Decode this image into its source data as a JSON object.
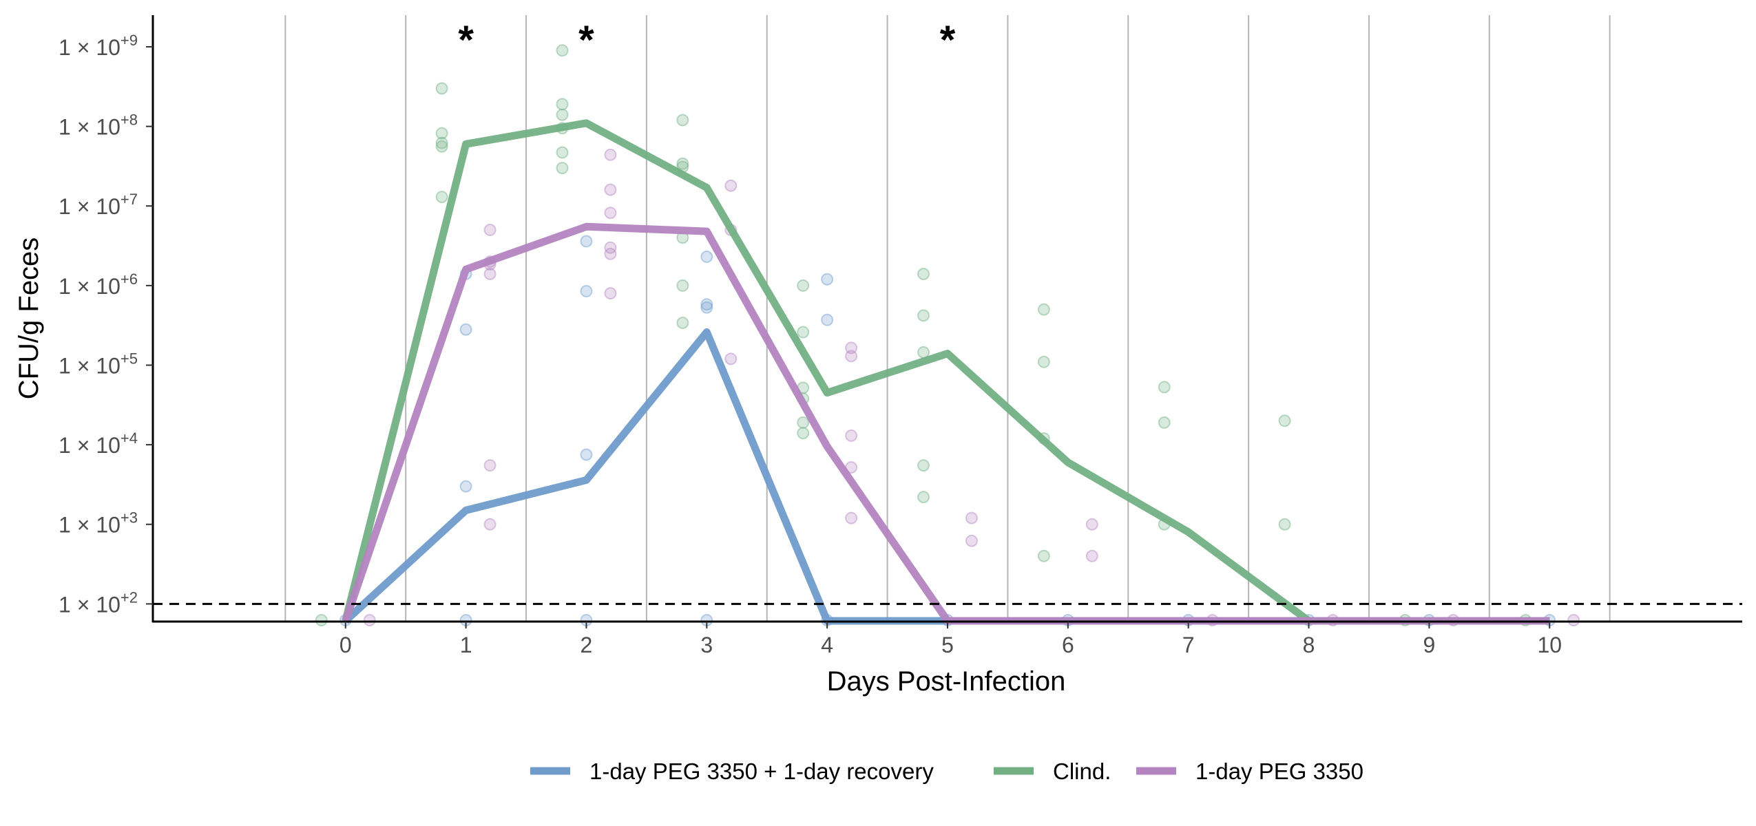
{
  "chart_data": {
    "type": "line",
    "title": "",
    "xlabel": "Days Post-Infection",
    "ylabel": "CFU/g Feces",
    "x_ticks": [
      0,
      1,
      2,
      3,
      4,
      5,
      6,
      7,
      8,
      9,
      10
    ],
    "y_scale": "log10",
    "y_tick_exponents": [
      2,
      3,
      4,
      5,
      6,
      7,
      8,
      9
    ],
    "y_tick_prefix": "1 × 10",
    "xlim": [
      -1.6,
      11.6
    ],
    "ylim": [
      60,
      2500000000
    ],
    "grid": "vertical lines between days",
    "detection_limit": 100,
    "significance_marks": [
      {
        "x": 1,
        "label": "*"
      },
      {
        "x": 2,
        "label": "*"
      },
      {
        "x": 5,
        "label": "*"
      }
    ],
    "legend_position": "bottom",
    "series": [
      {
        "name": "1-day PEG 3350 + 1-day recovery",
        "color": "#6f9bcb",
        "x": [
          0,
          1,
          2,
          3,
          4,
          5,
          6,
          7,
          8,
          9,
          10
        ],
        "y": [
          50,
          1500,
          3600,
          260000,
          50,
          50,
          50,
          50,
          50,
          50,
          50
        ],
        "points": [
          {
            "x": 0,
            "y": 50
          },
          {
            "x": 1,
            "y": 50
          },
          {
            "x": 1,
            "y": 3000
          },
          {
            "x": 1,
            "y": 280000
          },
          {
            "x": 1,
            "y": 1400000
          },
          {
            "x": 2,
            "y": 50
          },
          {
            "x": 2,
            "y": 7500
          },
          {
            "x": 2,
            "y": 850000
          },
          {
            "x": 2,
            "y": 3600000
          },
          {
            "x": 3,
            "y": 50
          },
          {
            "x": 3,
            "y": 580000
          },
          {
            "x": 3,
            "y": 530000
          },
          {
            "x": 3,
            "y": 2300000
          },
          {
            "x": 4,
            "y": 50
          },
          {
            "x": 4,
            "y": 1200000
          },
          {
            "x": 4,
            "y": 370000
          },
          {
            "x": 5,
            "y": 50
          },
          {
            "x": 6,
            "y": 50
          },
          {
            "x": 7,
            "y": 50
          },
          {
            "x": 8,
            "y": 50
          },
          {
            "x": 9,
            "y": 50
          },
          {
            "x": 10,
            "y": 50
          }
        ]
      },
      {
        "name": "Clind.",
        "color": "#72b084",
        "x": [
          0,
          1,
          2,
          3,
          4,
          5,
          6,
          7,
          8,
          9,
          10
        ],
        "y": [
          50,
          60000000,
          110000000,
          17000000,
          45000,
          140000,
          6000,
          800,
          50,
          50,
          50
        ],
        "points": [
          {
            "x": -0.2,
            "y": 50
          },
          {
            "x": 0.8,
            "y": 300000000
          },
          {
            "x": 0.8,
            "y": 82000000
          },
          {
            "x": 0.8,
            "y": 62000000
          },
          {
            "x": 0.8,
            "y": 56000000
          },
          {
            "x": 0.8,
            "y": 13000000
          },
          {
            "x": 1.8,
            "y": 900000000
          },
          {
            "x": 1.8,
            "y": 190000000
          },
          {
            "x": 1.8,
            "y": 140000000
          },
          {
            "x": 1.8,
            "y": 95000000
          },
          {
            "x": 1.8,
            "y": 47000000
          },
          {
            "x": 1.8,
            "y": 30000000
          },
          {
            "x": 2.8,
            "y": 120000000
          },
          {
            "x": 2.8,
            "y": 34000000
          },
          {
            "x": 2.8,
            "y": 31000000
          },
          {
            "x": 2.8,
            "y": 4000000
          },
          {
            "x": 2.8,
            "y": 1000000
          },
          {
            "x": 2.8,
            "y": 340000
          },
          {
            "x": 3.8,
            "y": 1000000
          },
          {
            "x": 3.8,
            "y": 260000
          },
          {
            "x": 3.8,
            "y": 52000
          },
          {
            "x": 3.8,
            "y": 38000
          },
          {
            "x": 3.8,
            "y": 19000
          },
          {
            "x": 3.8,
            "y": 14000
          },
          {
            "x": 4.8,
            "y": 1400000
          },
          {
            "x": 4.8,
            "y": 420000
          },
          {
            "x": 4.8,
            "y": 145000
          },
          {
            "x": 4.8,
            "y": 5500
          },
          {
            "x": 4.8,
            "y": 2200
          },
          {
            "x": 5.8,
            "y": 500000
          },
          {
            "x": 5.8,
            "y": 110000
          },
          {
            "x": 5.8,
            "y": 12000
          },
          {
            "x": 5.8,
            "y": 400
          },
          {
            "x": 6.8,
            "y": 53000
          },
          {
            "x": 6.8,
            "y": 19000
          },
          {
            "x": 6.8,
            "y": 1000
          },
          {
            "x": 7.8,
            "y": 20000
          },
          {
            "x": 7.8,
            "y": 1000
          },
          {
            "x": 8.8,
            "y": 50
          },
          {
            "x": 9.8,
            "y": 50
          }
        ]
      },
      {
        "name": "1-day PEG 3350",
        "color": "#b384c0",
        "x": [
          0,
          1,
          2,
          3,
          4,
          5,
          6,
          7,
          8,
          9,
          10
        ],
        "y": [
          50,
          1600000,
          5500000,
          4800000,
          9500,
          50,
          50,
          50,
          50,
          50,
          50
        ],
        "points": [
          {
            "x": 0.2,
            "y": 50
          },
          {
            "x": 1.2,
            "y": 5000000
          },
          {
            "x": 1.2,
            "y": 2000000
          },
          {
            "x": 1.2,
            "y": 1850000
          },
          {
            "x": 1.2,
            "y": 1400000
          },
          {
            "x": 1.2,
            "y": 5500
          },
          {
            "x": 1.2,
            "y": 1000
          },
          {
            "x": 2.2,
            "y": 44000000
          },
          {
            "x": 2.2,
            "y": 16000000
          },
          {
            "x": 2.2,
            "y": 8200000
          },
          {
            "x": 2.2,
            "y": 3000000
          },
          {
            "x": 2.2,
            "y": 2500000
          },
          {
            "x": 2.2,
            "y": 800000
          },
          {
            "x": 3.2,
            "y": 18000000
          },
          {
            "x": 3.2,
            "y": 5000000
          },
          {
            "x": 3.2,
            "y": 120000
          },
          {
            "x": 4.2,
            "y": 165000
          },
          {
            "x": 4.2,
            "y": 130000
          },
          {
            "x": 4.2,
            "y": 13000
          },
          {
            "x": 4.2,
            "y": 5200
          },
          {
            "x": 4.2,
            "y": 1200
          },
          {
            "x": 5.2,
            "y": 1200
          },
          {
            "x": 5.2,
            "y": 620
          },
          {
            "x": 6.2,
            "y": 1000
          },
          {
            "x": 6.2,
            "y": 400
          },
          {
            "x": 7.2,
            "y": 50
          },
          {
            "x": 8.2,
            "y": 50
          },
          {
            "x": 9.2,
            "y": 50
          },
          {
            "x": 10.2,
            "y": 50
          }
        ]
      }
    ]
  }
}
